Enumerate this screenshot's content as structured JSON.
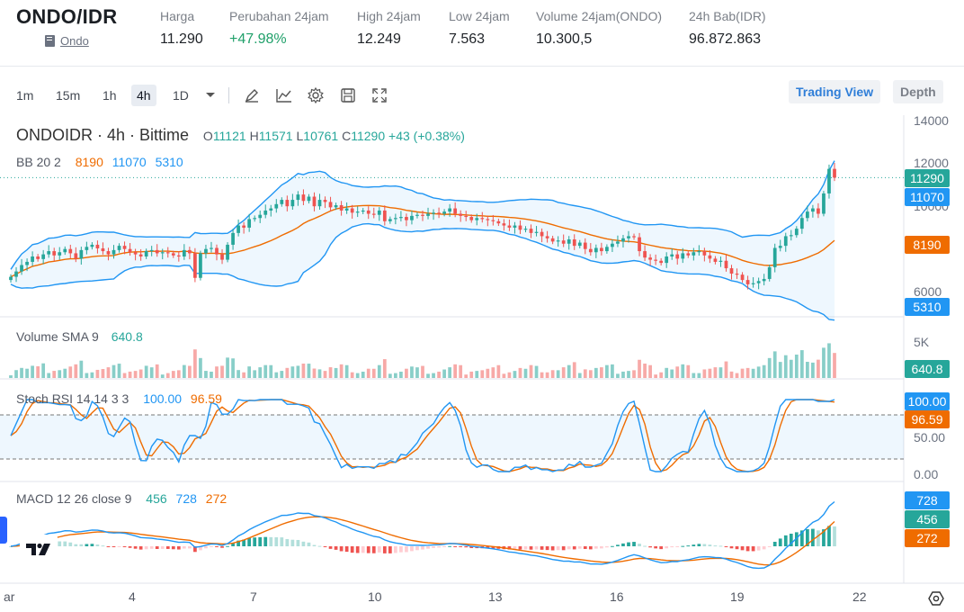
{
  "ticker": {
    "pair": "ONDO/IDR",
    "sub_link": "Ondo",
    "stats": [
      {
        "label": "Harga",
        "value": "11.290",
        "positive": false
      },
      {
        "label": "Perubahan 24jam",
        "value": "+47.98%",
        "positive": true
      },
      {
        "label": "High 24jam",
        "value": "12.249",
        "positive": false
      },
      {
        "label": "Low 24jam",
        "value": "7.563",
        "positive": false
      },
      {
        "label": "Volume 24jam(ONDO)",
        "value": "10.300,5",
        "positive": false
      },
      {
        "label": "24h Bab(IDR)",
        "value": "96.872.863",
        "positive": false
      }
    ]
  },
  "toolbar": {
    "timeframes": [
      "1m",
      "15m",
      "1h",
      "4h",
      "1D"
    ],
    "active_timeframe": "4h",
    "icons": [
      "chevron-down-icon",
      "brush-icon",
      "indicator-icon",
      "gear-icon",
      "save-icon",
      "fullscreen-icon"
    ],
    "view_buttons": {
      "trading_view": "Trading View",
      "depth": "Depth"
    }
  },
  "legend": {
    "title": "ONDOIDR · 4h · Bittime",
    "ohlc": {
      "o_label": "O",
      "o": "11121",
      "h_label": "H",
      "h": "11571",
      "l_label": "L",
      "l": "10761",
      "c_label": "C",
      "c": "11290",
      "change": "+43 (+0.38%)"
    },
    "bb": {
      "name": "BB 20 2",
      "v1": "8190",
      "v2": "11070",
      "v3": "5310"
    },
    "volume": {
      "name": "Volume SMA 9",
      "v": "640.8"
    },
    "stoch": {
      "name": "Stoch RSI 14 14 3 3",
      "k": "100.00",
      "d": "96.59"
    },
    "macd": {
      "name": "MACD 12 26 close 9",
      "hist": "456",
      "macd": "728",
      "signal": "272"
    }
  },
  "price_axis": {
    "main_ticks": [
      "14000",
      "12000",
      "10000",
      "8000",
      "6000"
    ],
    "volume_ticks": [
      "5K"
    ],
    "stoch_ticks": [
      "50.00",
      "0.00"
    ],
    "tags": {
      "last": "11290",
      "bb_upper": "11070",
      "bb_basis": "8190",
      "bb_lower": "5310",
      "volume": "640.8",
      "stoch_k": "100.00",
      "stoch_d": "96.59",
      "macd": "728",
      "hist": "456",
      "signal": "272"
    }
  },
  "time_axis": [
    "ar",
    "4",
    "7",
    "10",
    "13",
    "16",
    "19",
    "22"
  ],
  "colors": {
    "up": "#26a69a",
    "down": "#ef5350",
    "bb_band": "#2196f3",
    "bb_basis": "#ef6c00",
    "accent": "#2f7ed8",
    "positive_text": "#20a06a"
  },
  "chart_data": {
    "type": "candlestick",
    "symbol": "ONDOIDR",
    "interval": "4h",
    "ylim": [
      5000,
      14500
    ],
    "last_price": 11290,
    "candles_close": [
      6650,
      6900,
      7200,
      7350,
      7600,
      7480,
      7700,
      7850,
      7650,
      7800,
      7950,
      7750,
      7500,
      7900,
      8050,
      8150,
      7980,
      7850,
      7700,
      7900,
      8100,
      7950,
      7800,
      7700,
      7600,
      7850,
      7900,
      7750,
      7800,
      7750,
      7650,
      7600,
      7900,
      7750,
      6600,
      7750,
      7950,
      8000,
      7700,
      7450,
      8150,
      8700,
      9050,
      8950,
      9350,
      9400,
      9550,
      9750,
      9850,
      10050,
      10250,
      9950,
      10250,
      10500,
      10200,
      10400,
      9950,
      10250,
      10150,
      9900,
      10000,
      9750,
      9850,
      9650,
      9700,
      9750,
      9600,
      9550,
      9750,
      9250,
      9350,
      9400,
      9450,
      9300,
      9500,
      9550,
      9500,
      9600,
      9650,
      9600,
      9700,
      9850,
      9600,
      9500,
      9450,
      9300,
      9400,
      9350,
      9300,
      9250,
      9150,
      9050,
      8950,
      9050,
      8850,
      8900,
      8700,
      8750,
      8550,
      8450,
      8300,
      8350,
      8200,
      8400,
      8100,
      8250,
      7950,
      7800,
      8000,
      7850,
      8050,
      8200,
      8300,
      8450,
      8550,
      8500,
      7850,
      7550,
      7450,
      7400,
      7300,
      7600,
      7700,
      7500,
      7750,
      7650,
      7800,
      7850,
      7650,
      7500,
      7350,
      7400,
      7050,
      6800,
      6750,
      6500,
      6300,
      6350,
      6450,
      6550,
      7100,
      8000,
      8100,
      8550,
      8600,
      8900,
      9400,
      9700,
      9850,
      9600,
      10550,
      11700,
      11290
    ],
    "bb_upper_last": 11070,
    "bb_basis_last": 8190,
    "bb_lower_last": 5310,
    "volume_sma": 640.8,
    "stoch_rsi": {
      "k": 100.0,
      "d": 96.59
    },
    "macd": {
      "hist": 456,
      "macd": 728,
      "signal": 272
    }
  }
}
